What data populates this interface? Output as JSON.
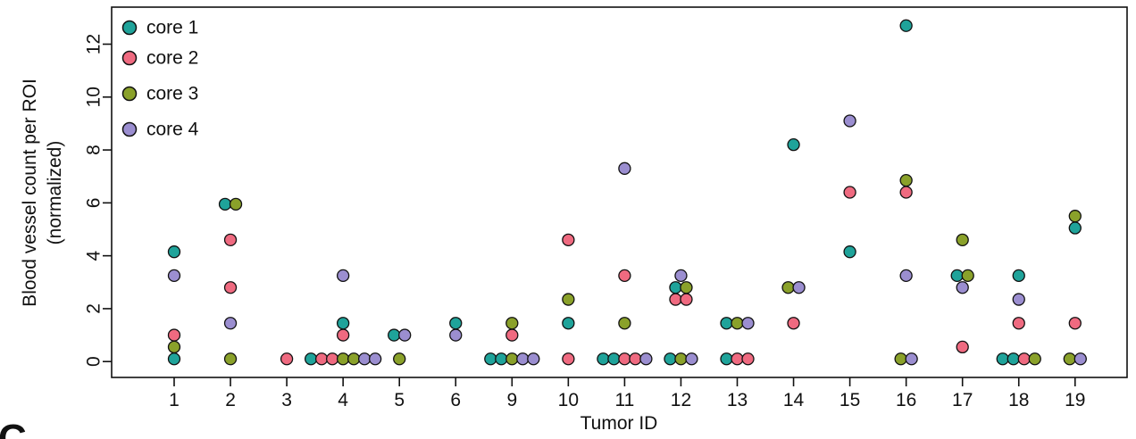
{
  "chart_data": {
    "type": "scatter",
    "title": "",
    "xlabel": "Tumor ID",
    "ylabel_line1": "Blood vessel count per ROI",
    "ylabel_line2": "(normalized)",
    "panel_letter": "C",
    "ylim": [
      -0.6,
      13.4
    ],
    "yticks": [
      "0",
      "2",
      "4",
      "6",
      "8",
      "10",
      "12"
    ],
    "categories": [
      "1",
      "2",
      "3",
      "4",
      "5",
      "6",
      "9",
      "10",
      "11",
      "12",
      "13",
      "14",
      "15",
      "16",
      "17",
      "18",
      "19"
    ],
    "legend_position": "top-left",
    "series": [
      {
        "name": "core 1",
        "color": "#1fa39a",
        "points": [
          {
            "tumor": "1",
            "y": 0.1
          },
          {
            "tumor": "1",
            "y": 4.15
          },
          {
            "tumor": "2",
            "y": 5.95
          },
          {
            "tumor": "4",
            "y": 0.1
          },
          {
            "tumor": "4",
            "y": 1.45
          },
          {
            "tumor": "5",
            "y": 1.0
          },
          {
            "tumor": "6",
            "y": 1.45
          },
          {
            "tumor": "9",
            "y": 0.1
          },
          {
            "tumor": "9",
            "y": 0.1
          },
          {
            "tumor": "10",
            "y": 1.45
          },
          {
            "tumor": "11",
            "y": 0.1
          },
          {
            "tumor": "11",
            "y": 0.1
          },
          {
            "tumor": "12",
            "y": 0.1
          },
          {
            "tumor": "12",
            "y": 2.8
          },
          {
            "tumor": "13",
            "y": 0.1
          },
          {
            "tumor": "13",
            "y": 1.45
          },
          {
            "tumor": "14",
            "y": 8.2
          },
          {
            "tumor": "15",
            "y": 4.15
          },
          {
            "tumor": "16",
            "y": 12.7
          },
          {
            "tumor": "17",
            "y": 3.25
          },
          {
            "tumor": "18",
            "y": 0.1
          },
          {
            "tumor": "18",
            "y": 0.1
          },
          {
            "tumor": "18",
            "y": 3.25
          },
          {
            "tumor": "19",
            "y": 5.05
          }
        ]
      },
      {
        "name": "core 2",
        "color": "#ef6a80",
        "points": [
          {
            "tumor": "1",
            "y": 1.0
          },
          {
            "tumor": "2",
            "y": 2.8
          },
          {
            "tumor": "2",
            "y": 4.6
          },
          {
            "tumor": "3",
            "y": 0.1
          },
          {
            "tumor": "4",
            "y": 0.1
          },
          {
            "tumor": "4",
            "y": 0.1
          },
          {
            "tumor": "4",
            "y": 1.0
          },
          {
            "tumor": "9",
            "y": 1.0
          },
          {
            "tumor": "10",
            "y": 0.1
          },
          {
            "tumor": "10",
            "y": 4.6
          },
          {
            "tumor": "11",
            "y": 0.1
          },
          {
            "tumor": "11",
            "y": 0.1
          },
          {
            "tumor": "11",
            "y": 3.25
          },
          {
            "tumor": "12",
            "y": 2.35
          },
          {
            "tumor": "12",
            "y": 2.35
          },
          {
            "tumor": "13",
            "y": 0.1
          },
          {
            "tumor": "13",
            "y": 0.1
          },
          {
            "tumor": "14",
            "y": 1.45
          },
          {
            "tumor": "15",
            "y": 6.4
          },
          {
            "tumor": "16",
            "y": 6.4
          },
          {
            "tumor": "17",
            "y": 0.55
          },
          {
            "tumor": "18",
            "y": 0.1
          },
          {
            "tumor": "18",
            "y": 1.45
          },
          {
            "tumor": "19",
            "y": 1.45
          }
        ]
      },
      {
        "name": "core 3",
        "color": "#8aa12a",
        "points": [
          {
            "tumor": "1",
            "y": 0.55
          },
          {
            "tumor": "2",
            "y": 0.1
          },
          {
            "tumor": "2",
            "y": 5.95
          },
          {
            "tumor": "4",
            "y": 0.1
          },
          {
            "tumor": "4",
            "y": 0.1
          },
          {
            "tumor": "5",
            "y": 0.1
          },
          {
            "tumor": "9",
            "y": 0.1
          },
          {
            "tumor": "9",
            "y": 1.45
          },
          {
            "tumor": "10",
            "y": 2.35
          },
          {
            "tumor": "11",
            "y": 1.45
          },
          {
            "tumor": "12",
            "y": 0.1
          },
          {
            "tumor": "12",
            "y": 2.8
          },
          {
            "tumor": "13",
            "y": 1.45
          },
          {
            "tumor": "14",
            "y": 2.8
          },
          {
            "tumor": "16",
            "y": 0.1
          },
          {
            "tumor": "16",
            "y": 6.85
          },
          {
            "tumor": "17",
            "y": 3.25
          },
          {
            "tumor": "17",
            "y": 4.6
          },
          {
            "tumor": "18",
            "y": 0.1
          },
          {
            "tumor": "19",
            "y": 0.1
          },
          {
            "tumor": "19",
            "y": 5.5
          }
        ]
      },
      {
        "name": "core 4",
        "color": "#9b8ed0",
        "points": [
          {
            "tumor": "1",
            "y": 3.25
          },
          {
            "tumor": "2",
            "y": 1.45
          },
          {
            "tumor": "4",
            "y": 0.1
          },
          {
            "tumor": "4",
            "y": 0.1
          },
          {
            "tumor": "4",
            "y": 3.25
          },
          {
            "tumor": "5",
            "y": 1.0
          },
          {
            "tumor": "6",
            "y": 1.0
          },
          {
            "tumor": "9",
            "y": 0.1
          },
          {
            "tumor": "9",
            "y": 0.1
          },
          {
            "tumor": "11",
            "y": 0.1
          },
          {
            "tumor": "11",
            "y": 7.3
          },
          {
            "tumor": "12",
            "y": 0.1
          },
          {
            "tumor": "12",
            "y": 3.25
          },
          {
            "tumor": "13",
            "y": 1.45
          },
          {
            "tumor": "14",
            "y": 2.8
          },
          {
            "tumor": "15",
            "y": 9.1
          },
          {
            "tumor": "16",
            "y": 0.1
          },
          {
            "tumor": "16",
            "y": 3.25
          },
          {
            "tumor": "17",
            "y": 2.8
          },
          {
            "tumor": "18",
            "y": 2.35
          },
          {
            "tumor": "19",
            "y": 0.1
          }
        ]
      }
    ]
  }
}
